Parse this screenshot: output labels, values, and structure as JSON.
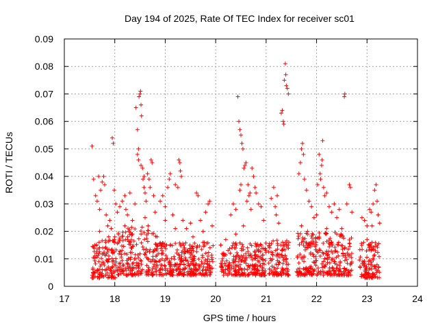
{
  "chart_data": {
    "type": "scatter",
    "title": "Day 194 of 2025, Rate Of TEC Index for receiver sc01",
    "xlabel": "GPS time / hours",
    "ylabel": "ROTI / TECUs",
    "xlim": [
      17,
      24
    ],
    "ylim": [
      0,
      0.09
    ],
    "x_ticks": [
      "17",
      "18",
      "19",
      "20",
      "21",
      "22",
      "23",
      "24"
    ],
    "y_ticks": [
      "0",
      "0.01",
      "0.02",
      "0.03",
      "0.04",
      "0.05",
      "0.06",
      "0.07",
      "0.08",
      "0.09"
    ],
    "grid": true,
    "marker": "+",
    "color": "#ff0000",
    "series": [
      {
        "name": "sc01",
        "points": [
          [
            17.55,
            0.051
          ],
          [
            17.58,
            0.039
          ],
          [
            17.62,
            0.033
          ],
          [
            17.65,
            0.031
          ],
          [
            17.68,
            0.04
          ],
          [
            17.7,
            0.028
          ],
          [
            17.72,
            0.035
          ],
          [
            17.75,
            0.038
          ],
          [
            17.78,
            0.04
          ],
          [
            17.8,
            0.037
          ],
          [
            17.83,
            0.026
          ],
          [
            17.86,
            0.022
          ],
          [
            17.88,
            0.018
          ],
          [
            17.95,
            0.054
          ],
          [
            17.97,
            0.052
          ],
          [
            17.99,
            0.035
          ],
          [
            18.02,
            0.03
          ],
          [
            18.05,
            0.027
          ],
          [
            17.6,
            0.015
          ],
          [
            17.64,
            0.012
          ],
          [
            17.7,
            0.02
          ],
          [
            17.76,
            0.014
          ],
          [
            17.82,
            0.016
          ],
          [
            17.9,
            0.024
          ],
          [
            17.93,
            0.021
          ],
          [
            18.0,
            0.018
          ],
          [
            18.1,
            0.029
          ],
          [
            18.15,
            0.031
          ],
          [
            18.2,
            0.033
          ],
          [
            18.22,
            0.028
          ],
          [
            18.25,
            0.026
          ],
          [
            18.3,
            0.034
          ],
          [
            18.35,
            0.024
          ],
          [
            18.4,
            0.03
          ],
          [
            18.42,
            0.065
          ],
          [
            18.45,
            0.057
          ],
          [
            18.47,
            0.05
          ],
          [
            18.48,
            0.069
          ],
          [
            18.5,
            0.07
          ],
          [
            18.51,
            0.071
          ],
          [
            18.52,
            0.066
          ],
          [
            18.53,
            0.062
          ],
          [
            18.55,
            0.043
          ],
          [
            18.56,
            0.039
          ],
          [
            18.58,
            0.036
          ],
          [
            18.6,
            0.034
          ],
          [
            18.62,
            0.031
          ],
          [
            18.65,
            0.041
          ],
          [
            18.68,
            0.039
          ],
          [
            18.7,
            0.036
          ],
          [
            18.72,
            0.046
          ],
          [
            18.74,
            0.045
          ],
          [
            18.77,
            0.033
          ],
          [
            18.8,
            0.027
          ],
          [
            18.45,
            0.048
          ],
          [
            18.47,
            0.046
          ],
          [
            18.52,
            0.044
          ],
          [
            18.58,
            0.04
          ],
          [
            18.2,
            0.022
          ],
          [
            18.28,
            0.02
          ],
          [
            18.35,
            0.019
          ],
          [
            18.6,
            0.025
          ],
          [
            18.66,
            0.022
          ],
          [
            18.9,
            0.031
          ],
          [
            18.95,
            0.033
          ],
          [
            19.0,
            0.029
          ],
          [
            19.05,
            0.036
          ],
          [
            19.08,
            0.039
          ],
          [
            19.1,
            0.041
          ],
          [
            19.15,
            0.026
          ],
          [
            19.2,
            0.037
          ],
          [
            19.25,
            0.036
          ],
          [
            19.27,
            0.046
          ],
          [
            19.29,
            0.045
          ],
          [
            19.3,
            0.042
          ],
          [
            19.32,
            0.04
          ],
          [
            19.35,
            0.024
          ],
          [
            19.42,
            0.021
          ],
          [
            19.5,
            0.023
          ],
          [
            19.62,
            0.034
          ],
          [
            19.65,
            0.033
          ],
          [
            19.7,
            0.024
          ],
          [
            19.75,
            0.02
          ],
          [
            19.8,
            0.027
          ],
          [
            19.85,
            0.03
          ],
          [
            19.88,
            0.031
          ],
          [
            19.93,
            0.022
          ],
          [
            19.0,
            0.024
          ],
          [
            19.2,
            0.021
          ],
          [
            19.55,
            0.018
          ],
          [
            20.1,
            0.015
          ],
          [
            20.2,
            0.017
          ],
          [
            20.3,
            0.026
          ],
          [
            20.35,
            0.03
          ],
          [
            20.4,
            0.028
          ],
          [
            20.44,
            0.069
          ],
          [
            20.46,
            0.06
          ],
          [
            20.48,
            0.057
          ],
          [
            20.5,
            0.055
          ],
          [
            20.52,
            0.052
          ],
          [
            20.54,
            0.05
          ],
          [
            20.56,
            0.043
          ],
          [
            20.58,
            0.044
          ],
          [
            20.6,
            0.045
          ],
          [
            20.62,
            0.031
          ],
          [
            20.64,
            0.037
          ],
          [
            20.66,
            0.033
          ],
          [
            20.68,
            0.034
          ],
          [
            20.7,
            0.028
          ],
          [
            20.72,
            0.043
          ],
          [
            20.75,
            0.04
          ],
          [
            20.78,
            0.036
          ],
          [
            20.8,
            0.034
          ],
          [
            20.85,
            0.03
          ],
          [
            20.9,
            0.029
          ],
          [
            20.95,
            0.024
          ],
          [
            20.48,
            0.035
          ],
          [
            20.5,
            0.037
          ],
          [
            20.4,
            0.019
          ],
          [
            20.55,
            0.022
          ],
          [
            21.1,
            0.032
          ],
          [
            21.15,
            0.036
          ],
          [
            21.18,
            0.029
          ],
          [
            21.22,
            0.033
          ],
          [
            21.3,
            0.063
          ],
          [
            21.32,
            0.064
          ],
          [
            21.34,
            0.06
          ],
          [
            21.35,
            0.059
          ],
          [
            21.36,
            0.075
          ],
          [
            21.38,
            0.081
          ],
          [
            21.39,
            0.077
          ],
          [
            21.4,
            0.073
          ],
          [
            21.42,
            0.072
          ],
          [
            21.44,
            0.07
          ],
          [
            21.2,
            0.026
          ],
          [
            21.25,
            0.023
          ],
          [
            21.45,
            0.016
          ],
          [
            21.65,
            0.041
          ],
          [
            21.68,
            0.045
          ],
          [
            21.7,
            0.05
          ],
          [
            21.72,
            0.052
          ],
          [
            21.74,
            0.048
          ],
          [
            21.76,
            0.039
          ],
          [
            21.8,
            0.035
          ],
          [
            21.85,
            0.031
          ],
          [
            21.9,
            0.029
          ],
          [
            21.95,
            0.025
          ],
          [
            22.0,
            0.026
          ],
          [
            22.02,
            0.037
          ],
          [
            22.05,
            0.048
          ],
          [
            22.07,
            0.041
          ],
          [
            22.08,
            0.039
          ],
          [
            22.1,
            0.044
          ],
          [
            22.11,
            0.046
          ],
          [
            22.12,
            0.053
          ],
          [
            22.14,
            0.036
          ],
          [
            22.16,
            0.033
          ],
          [
            22.2,
            0.034
          ],
          [
            22.25,
            0.029
          ],
          [
            22.3,
            0.027
          ],
          [
            22.35,
            0.03
          ],
          [
            22.4,
            0.025
          ],
          [
            22.45,
            0.028
          ],
          [
            22.5,
            0.021
          ],
          [
            22.55,
            0.069
          ],
          [
            22.56,
            0.07
          ],
          [
            22.6,
            0.03
          ],
          [
            22.65,
            0.037
          ],
          [
            22.67,
            0.036
          ],
          [
            22.7,
            0.027
          ],
          [
            21.7,
            0.022
          ],
          [
            21.82,
            0.02
          ],
          [
            22.2,
            0.021
          ],
          [
            22.4,
            0.019
          ],
          [
            22.9,
            0.025
          ],
          [
            22.95,
            0.024
          ],
          [
            23.0,
            0.022
          ],
          [
            23.05,
            0.028
          ],
          [
            23.08,
            0.027
          ],
          [
            23.1,
            0.022
          ],
          [
            23.12,
            0.03
          ],
          [
            23.15,
            0.035
          ],
          [
            23.18,
            0.037
          ],
          [
            23.2,
            0.031
          ],
          [
            23.22,
            0.026
          ],
          [
            23.25,
            0.023
          ],
          [
            23.0,
            0.017
          ],
          [
            23.1,
            0.016
          ],
          [
            23.2,
            0.015
          ]
        ]
      }
    ],
    "dense_band": {
      "description": "dense cluster of low ROTI values",
      "segments": [
        {
          "x_start": 17.55,
          "x_end": 18.03,
          "y_min": 0.003,
          "y_max": 0.017
        },
        {
          "x_start": 18.05,
          "x_end": 18.85,
          "y_min": 0.004,
          "y_max": 0.022
        },
        {
          "x_start": 18.87,
          "x_end": 19.95,
          "y_min": 0.004,
          "y_max": 0.016
        },
        {
          "x_start": 20.1,
          "x_end": 21.0,
          "y_min": 0.004,
          "y_max": 0.016
        },
        {
          "x_start": 21.05,
          "x_end": 21.45,
          "y_min": 0.004,
          "y_max": 0.017
        },
        {
          "x_start": 21.6,
          "x_end": 22.7,
          "y_min": 0.004,
          "y_max": 0.02
        },
        {
          "x_start": 22.85,
          "x_end": 23.25,
          "y_min": 0.003,
          "y_max": 0.016
        }
      ]
    }
  }
}
